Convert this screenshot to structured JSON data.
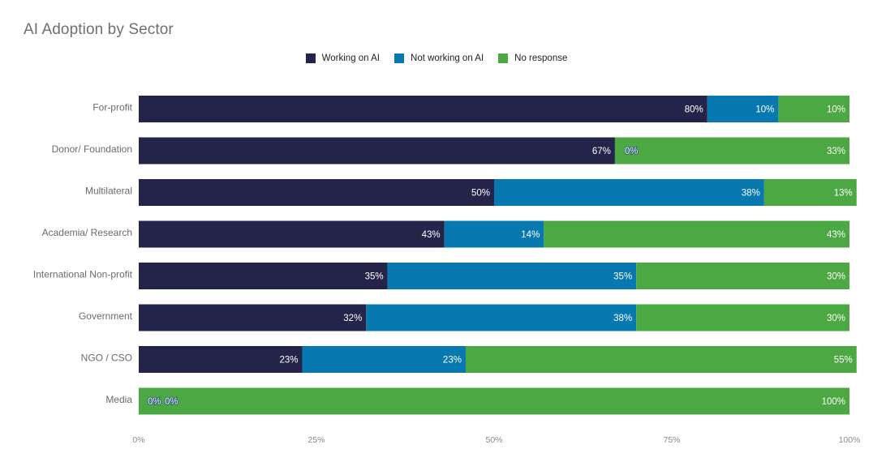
{
  "chart_data": {
    "type": "bar",
    "orientation": "horizontal",
    "stacked": true,
    "title": "AI Adoption by Sector",
    "xlabel": "",
    "ylabel": "",
    "xlim": [
      0,
      100
    ],
    "x_ticks": [
      "0%",
      "25%",
      "50%",
      "75%",
      "100%"
    ],
    "categories": [
      "For-profit",
      "Donor/ Foundation",
      "Multilateral",
      "Academia/ Research",
      "International Non-profit",
      "Government",
      "NGO / CSO",
      "Media"
    ],
    "series": [
      {
        "name": "Working on AI",
        "color": "#24234a",
        "values": [
          80,
          67,
          50,
          43,
          35,
          32,
          23,
          0
        ],
        "labels": [
          "80%",
          "67%",
          "50%",
          "43%",
          "35%",
          "32%",
          "23%",
          "0%"
        ]
      },
      {
        "name": "Not working on AI",
        "color": "#0878b0",
        "values": [
          10,
          0,
          38,
          14,
          35,
          38,
          23,
          0
        ],
        "labels": [
          "10%",
          "0%",
          "38%",
          "14%",
          "35%",
          "38%",
          "23%",
          "0%"
        ]
      },
      {
        "name": "No response",
        "color": "#4ca842",
        "values": [
          10,
          33,
          13,
          43,
          30,
          30,
          55,
          100
        ],
        "labels": [
          "10%",
          "33%",
          "13%",
          "43%",
          "30%",
          "30%",
          "55%",
          "100%"
        ]
      }
    ],
    "legend_position": "top-center",
    "grid": false
  }
}
